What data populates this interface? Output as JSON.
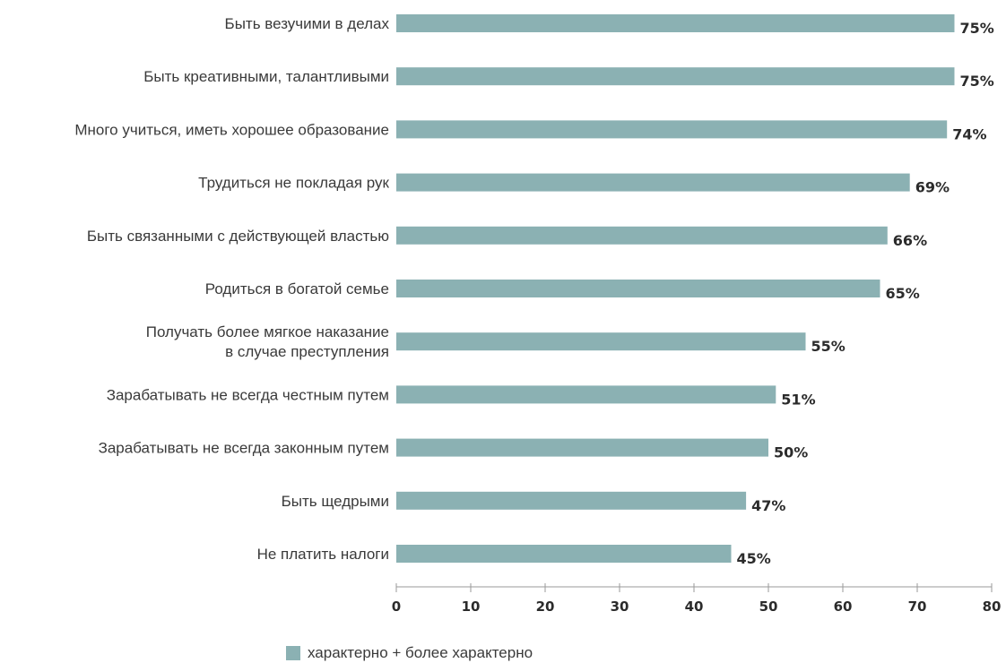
{
  "chart_data": {
    "type": "bar",
    "orientation": "horizontal",
    "categories": [
      "Быть везучими в делах",
      "Быть креативными, талантливыми",
      "Много учиться, иметь хорошее образование",
      "Трудиться не покладая рук",
      "Быть связанными с действующей властью",
      "Родиться в богатой семье",
      "Получать более мягкое наказание\nв случае преступления",
      "Зарабатывать не всегда честным путем",
      "Зарабатывать не всегда законным путем",
      "Быть щедрыми",
      "Не платить налоги"
    ],
    "series": [
      {
        "name": "характерно + более характерно",
        "values": [
          75,
          75,
          74,
          69,
          66,
          65,
          55,
          51,
          50,
          47,
          45
        ],
        "labels": [
          "75%",
          "75%",
          "74%",
          "69%",
          "66%",
          "65%",
          "55%",
          "51%",
          "50%",
          "47%",
          "45%"
        ],
        "color": "#8bb1b3"
      }
    ],
    "xlim": [
      0,
      80
    ],
    "xticks": [
      0,
      10,
      20,
      30,
      40,
      50,
      60,
      70,
      80
    ],
    "grid": false,
    "legend": "bottom-center",
    "title": "",
    "xlabel": "",
    "ylabel": ""
  }
}
